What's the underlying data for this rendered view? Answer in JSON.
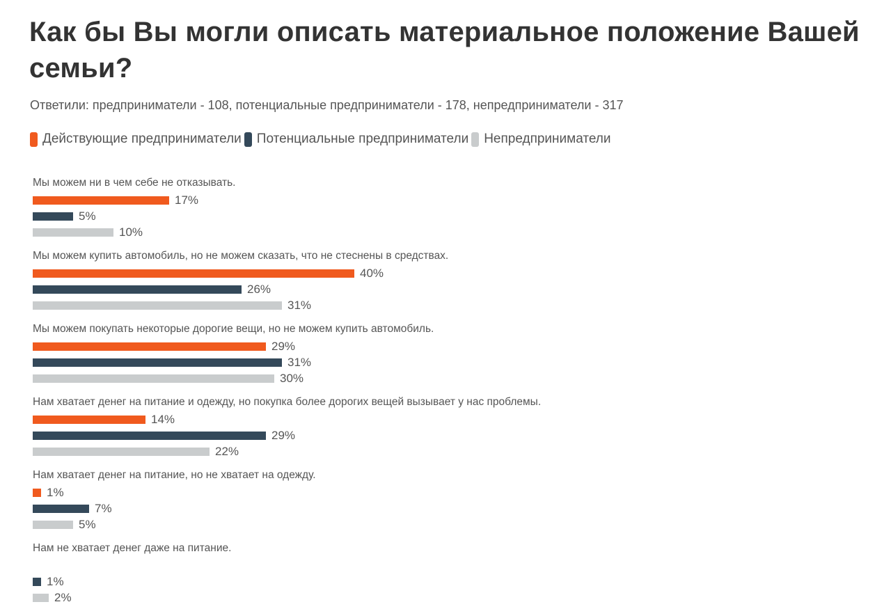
{
  "title": "Как бы Вы могли описать материальное положение Вашей семьи?",
  "subtitle": "Ответили: предприниматели - 108, потенциальные предприниматели - 178, непредприниматели - 317",
  "legend": [
    {
      "label": "Действующие предприниматели",
      "color": "#f05a1e"
    },
    {
      "label": "Потенциальные предприниматели",
      "color": "#34495a"
    },
    {
      "label": "Непредприниматели",
      "color": "#c9cccd"
    }
  ],
  "chart_data": {
    "type": "bar",
    "orientation": "horizontal",
    "title": "Как бы Вы могли описать материальное положение Вашей семьи?",
    "subtitle": "Ответили: предприниматели - 108, потенциальные предприниматели - 178, непредприниматели - 317",
    "xlabel": "",
    "ylabel": "",
    "unit": "%",
    "grid": false,
    "legend_position": "top",
    "categories": [
      "Мы можем ни в чем себе не отказывать.",
      "Мы можем купить автомобиль, но не можем сказать, что не стеснены в средствах.",
      "Мы можем покупать некоторые дорогие вещи, но не можем купить автомобиль.",
      "Нам хватает денег на питание и одежду, но покупка более дорогих вещей вызывает у нас проблемы.",
      "Нам хватает денег на питание, но не хватает на одежду.",
      "Нам не хватает денег даже на питание."
    ],
    "series": [
      {
        "name": "Действующие предприниматели",
        "color": "#f05a1e",
        "values": [
          17,
          40,
          29,
          14,
          1,
          null
        ]
      },
      {
        "name": "Потенциальные предприниматели",
        "color": "#34495a",
        "values": [
          5,
          26,
          31,
          29,
          7,
          1
        ]
      },
      {
        "name": "Непредприниматели",
        "color": "#c9cccd",
        "values": [
          10,
          31,
          30,
          22,
          5,
          2
        ]
      }
    ]
  },
  "groups": [
    {
      "label": "Мы можем ни в чем себе не отказывать.",
      "bars": [
        {
          "value": 17,
          "text": "17%"
        },
        {
          "value": 5,
          "text": "5%"
        },
        {
          "value": 10,
          "text": "10%"
        }
      ]
    },
    {
      "label": "Мы можем купить автомобиль, но не можем сказать, что не стеснены в средствах.",
      "bars": [
        {
          "value": 40,
          "text": "40%"
        },
        {
          "value": 26,
          "text": "26%"
        },
        {
          "value": 31,
          "text": "31%"
        }
      ]
    },
    {
      "label": "Мы можем покупать некоторые дорогие вещи, но не можем купить автомобиль.",
      "bars": [
        {
          "value": 29,
          "text": "29%"
        },
        {
          "value": 31,
          "text": "31%"
        },
        {
          "value": 30,
          "text": "30%"
        }
      ]
    },
    {
      "label": "Нам хватает денег на питание и одежду, но покупка более дорогих вещей вызывает у нас проблемы.",
      "bars": [
        {
          "value": 14,
          "text": "14%"
        },
        {
          "value": 29,
          "text": "29%"
        },
        {
          "value": 22,
          "text": "22%"
        }
      ]
    },
    {
      "label": "Нам хватает денег на питание, но не хватает на одежду.",
      "bars": [
        {
          "value": 1,
          "text": "1%"
        },
        {
          "value": 7,
          "text": "7%"
        },
        {
          "value": 5,
          "text": "5%"
        }
      ]
    },
    {
      "label": "Нам не хватает денег даже на питание.",
      "bars": [
        {
          "value": null,
          "text": ""
        },
        {
          "value": 1,
          "text": "1%"
        },
        {
          "value": 2,
          "text": "2%"
        }
      ]
    }
  ]
}
